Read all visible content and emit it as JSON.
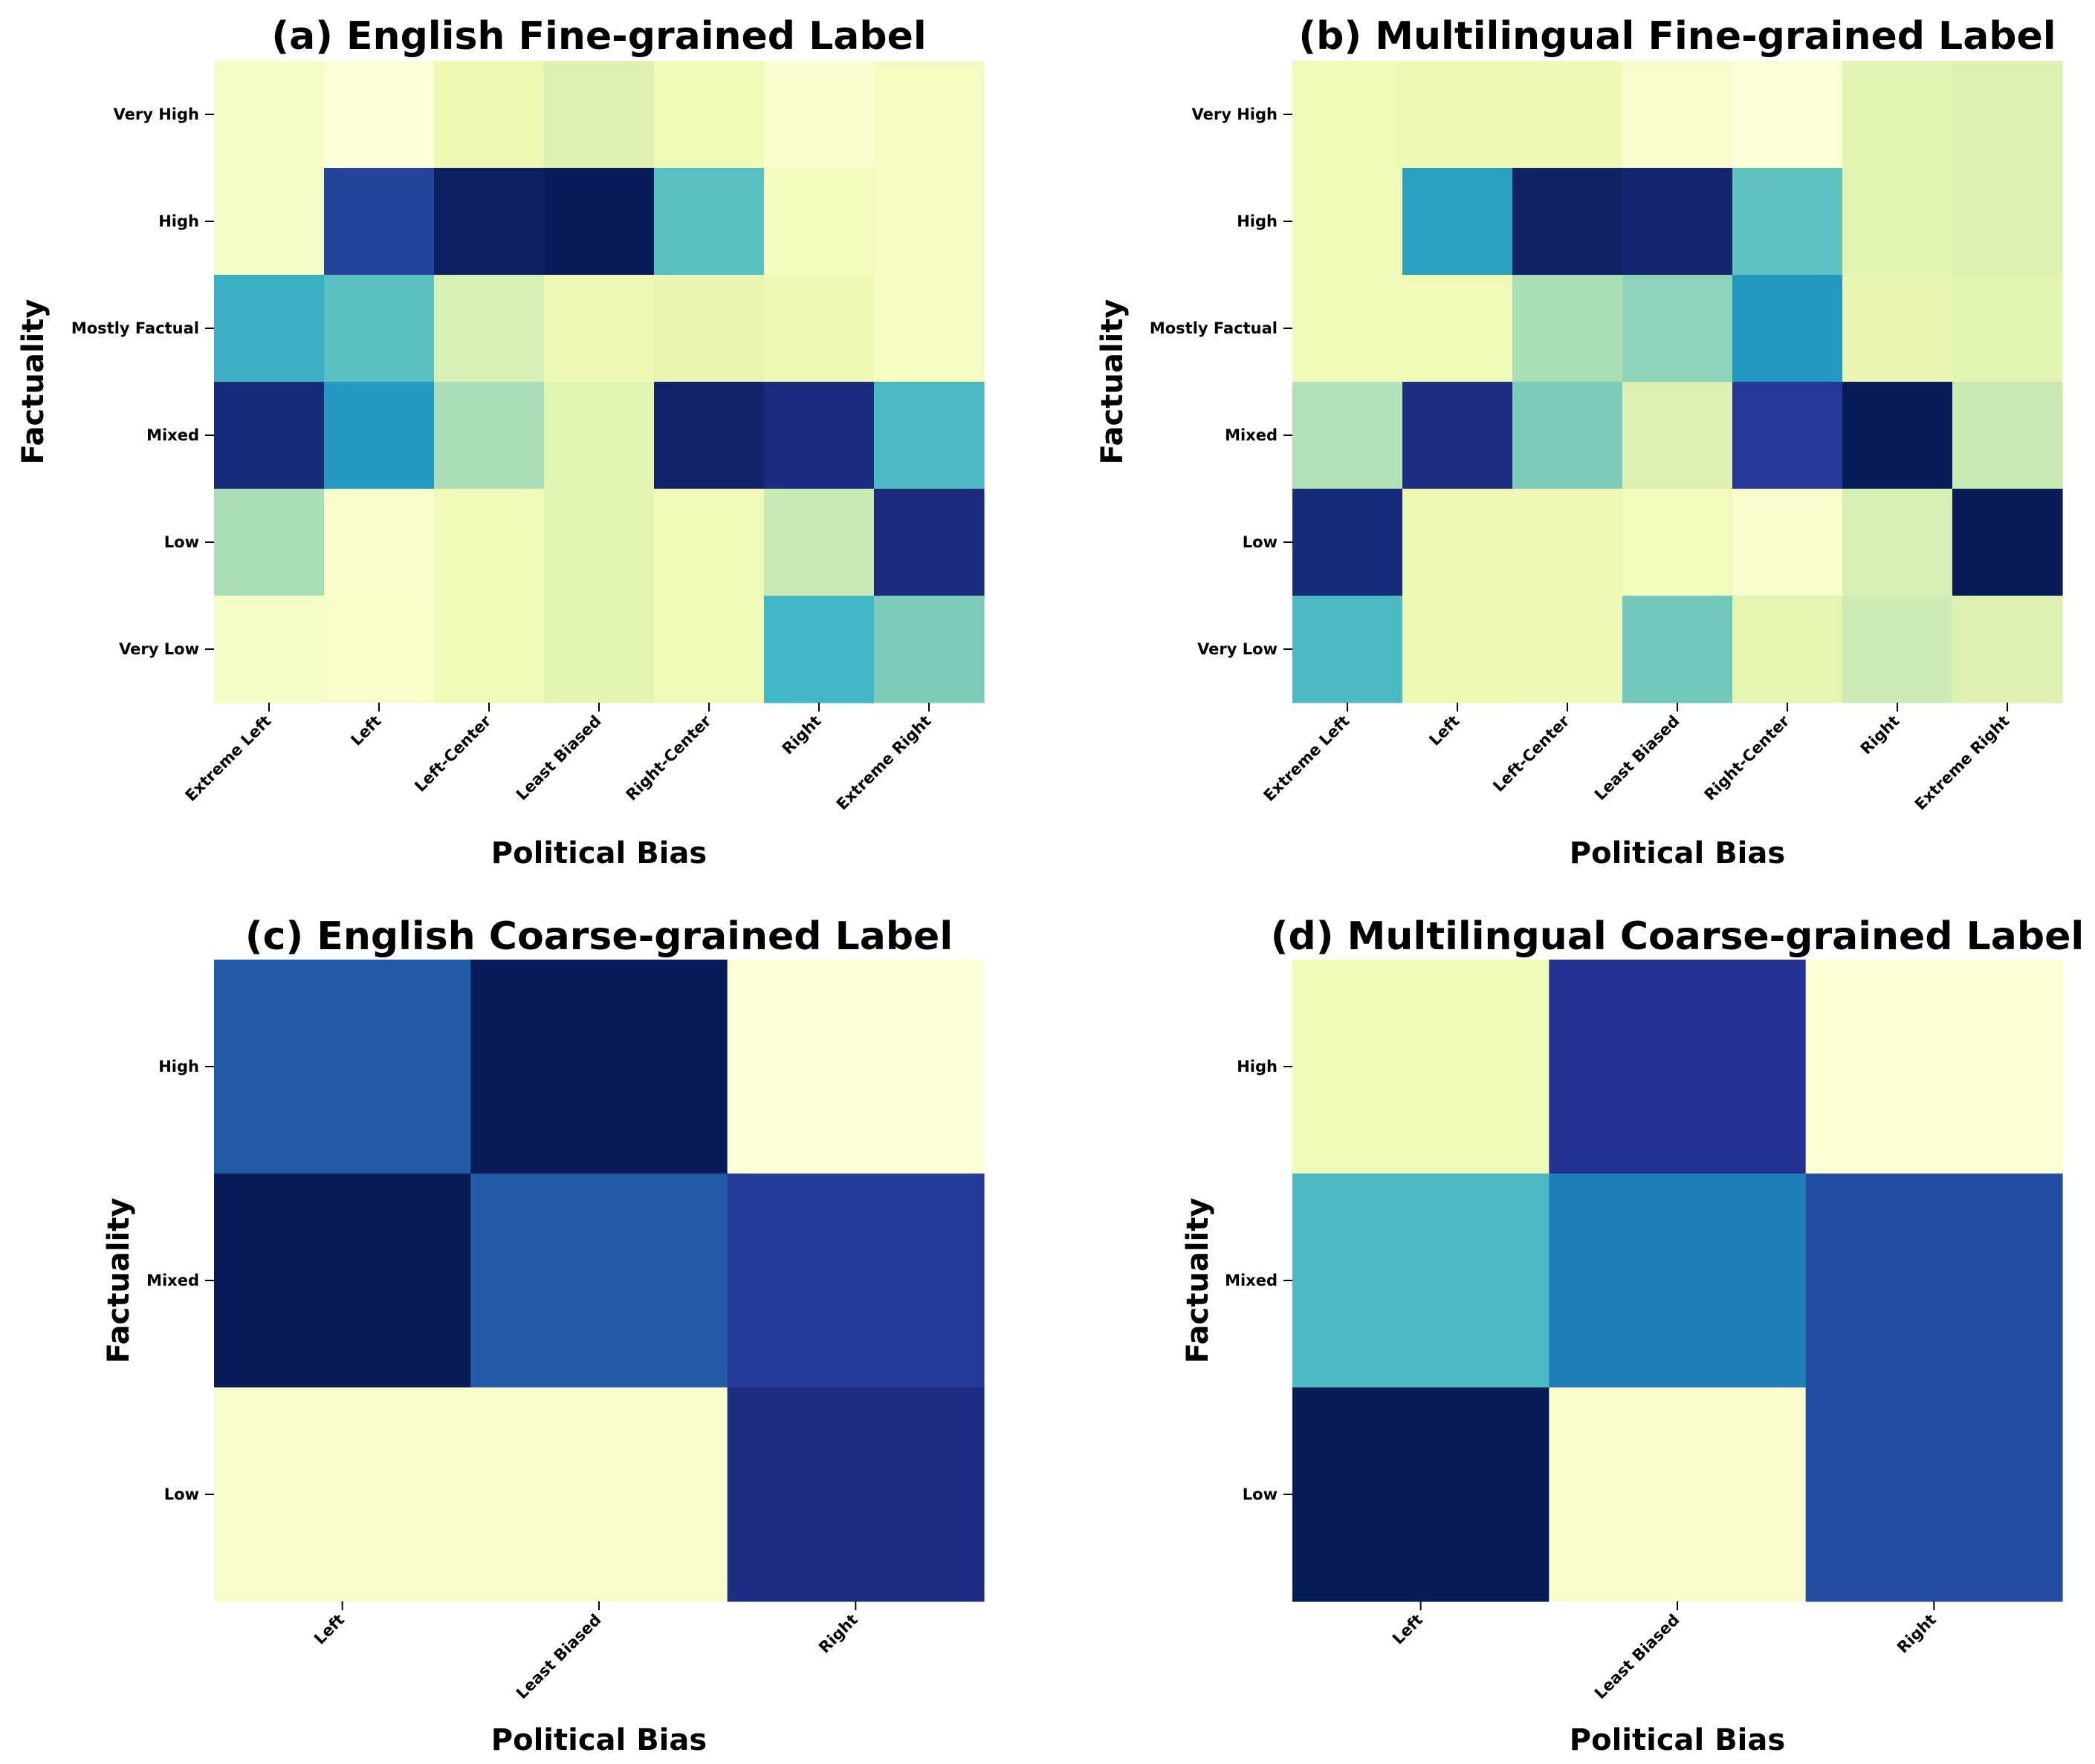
{
  "chart_data": [
    {
      "type": "heatmap",
      "panel": "a",
      "title": "(a) English Fine-grained Label",
      "xlabel": "Political Bias",
      "ylabel": "Factuality",
      "x_categories": [
        "Extreme Left",
        "Left",
        "Left-Center",
        "Least Biased",
        "Right-Center",
        "Right",
        "Extreme Right"
      ],
      "y_categories": [
        "Very High",
        "High",
        "Mostly Factual",
        "Mixed",
        "Low",
        "Very Low"
      ],
      "colormap": "YlGnBu",
      "value_scale": [
        0,
        1
      ],
      "values": [
        [
          0.06,
          0.01,
          0.12,
          0.18,
          0.1,
          0.03,
          0.07
        ],
        [
          0.06,
          0.83,
          0.98,
          1.0,
          0.45,
          0.08,
          0.07
        ],
        [
          0.52,
          0.45,
          0.2,
          0.11,
          0.14,
          0.11,
          0.07
        ],
        [
          0.93,
          0.6,
          0.3,
          0.16,
          0.96,
          0.92,
          0.48
        ],
        [
          0.3,
          0.04,
          0.1,
          0.16,
          0.1,
          0.24,
          0.92
        ],
        [
          0.06,
          0.05,
          0.1,
          0.16,
          0.1,
          0.5,
          0.38
        ]
      ]
    },
    {
      "type": "heatmap",
      "panel": "b",
      "title": "(b) Multilingual Fine-grained Label",
      "xlabel": "Political Bias",
      "ylabel": "Factuality",
      "x_categories": [
        "Extreme Left",
        "Left",
        "Left-Center",
        "Least Biased",
        "Right-Center",
        "Right",
        "Extreme Right"
      ],
      "y_categories": [
        "Very High",
        "High",
        "Mostly Factual",
        "Mixed",
        "Low",
        "Very Low"
      ],
      "colormap": "YlGnBu",
      "value_scale": [
        0,
        1
      ],
      "values": [
        [
          0.1,
          0.12,
          0.11,
          0.04,
          0.01,
          0.16,
          0.18
        ],
        [
          0.1,
          0.57,
          0.97,
          0.95,
          0.44,
          0.16,
          0.18
        ],
        [
          0.1,
          0.1,
          0.3,
          0.35,
          0.6,
          0.14,
          0.16
        ],
        [
          0.29,
          0.91,
          0.38,
          0.18,
          0.86,
          1.0,
          0.24
        ],
        [
          0.93,
          0.12,
          0.11,
          0.09,
          0.04,
          0.2,
          1.0
        ],
        [
          0.48,
          0.12,
          0.11,
          0.4,
          0.15,
          0.23,
          0.18
        ]
      ]
    },
    {
      "type": "heatmap",
      "panel": "c",
      "title": "(c) English Coarse-grained Label",
      "xlabel": "Political Bias",
      "ylabel": "Factuality",
      "x_categories": [
        "Left",
        "Least Biased",
        "Right"
      ],
      "y_categories": [
        "High",
        "Mixed",
        "Low"
      ],
      "colormap": "YlGnBu",
      "value_scale": [
        0,
        1
      ],
      "values": [
        [
          0.76,
          1.0,
          0.01
        ],
        [
          1.0,
          0.76,
          0.85
        ],
        [
          0.04,
          0.04,
          0.91
        ]
      ]
    },
    {
      "type": "heatmap",
      "panel": "d",
      "title": "(d) Multilingual Coarse-grained Label",
      "xlabel": "Political Bias",
      "ylabel": "Factuality",
      "x_categories": [
        "Left",
        "Least Biased",
        "Right"
      ],
      "y_categories": [
        "High",
        "Mixed",
        "Low"
      ],
      "colormap": "YlGnBu",
      "value_scale": [
        0,
        1
      ],
      "values": [
        [
          0.1,
          0.88,
          0.02
        ],
        [
          0.48,
          0.67,
          0.8
        ],
        [
          1.0,
          0.04,
          0.8
        ]
      ]
    }
  ]
}
